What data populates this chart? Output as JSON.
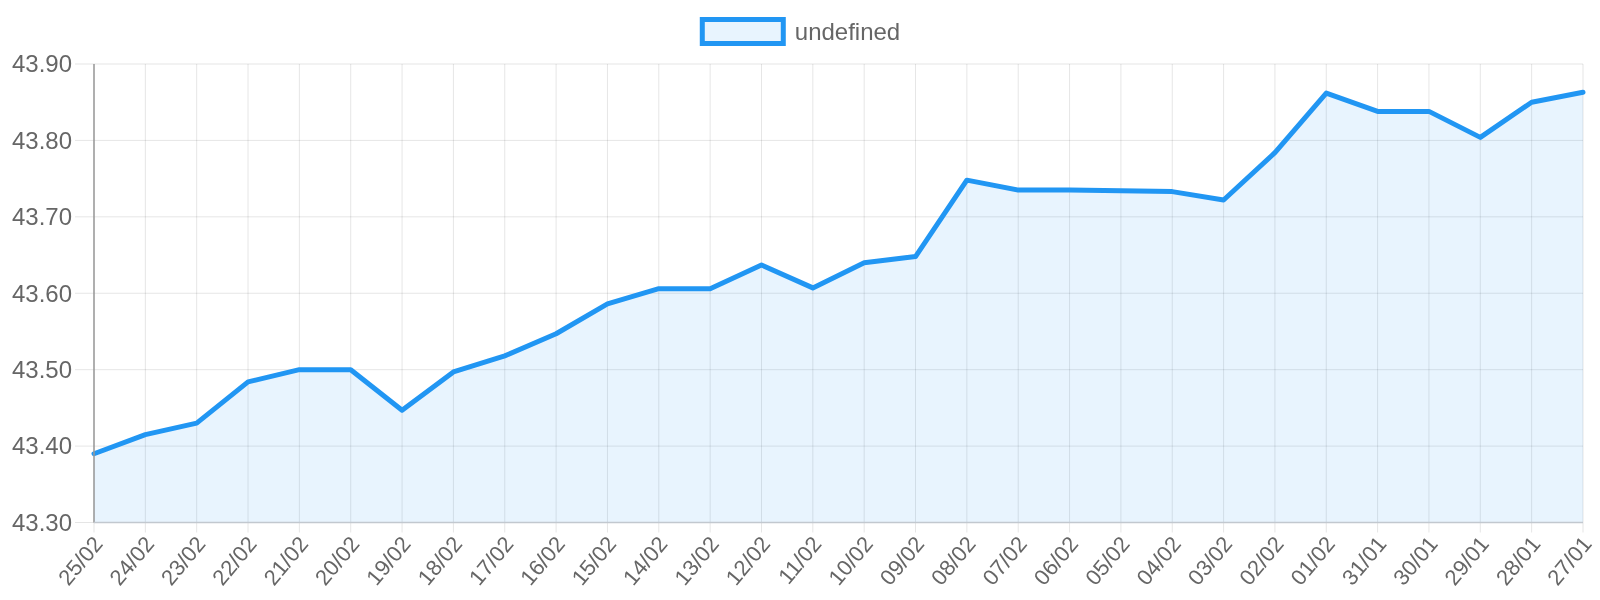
{
  "chart_data": {
    "type": "area",
    "categories": [
      "25/02",
      "24/02",
      "23/02",
      "22/02",
      "21/02",
      "20/02",
      "19/02",
      "18/02",
      "17/02",
      "16/02",
      "15/02",
      "14/02",
      "13/02",
      "12/02",
      "11/02",
      "10/02",
      "09/02",
      "08/02",
      "07/02",
      "06/02",
      "05/02",
      "04/02",
      "03/02",
      "02/02",
      "01/02",
      "31/01",
      "30/01",
      "29/01",
      "28/01",
      "27/01"
    ],
    "series": [
      {
        "name": "undefined",
        "color": "#2196f3",
        "values": [
          43.39,
          43.415,
          43.43,
          43.484,
          43.5,
          43.5,
          43.447,
          43.497,
          43.518,
          43.547,
          43.586,
          43.606,
          43.606,
          43.637,
          43.607,
          43.64,
          43.648,
          43.748,
          43.735,
          43.735,
          43.734,
          43.733,
          43.722,
          43.784,
          43.862,
          43.838,
          43.838,
          43.804,
          43.85,
          43.863
        ]
      }
    ],
    "ylim": [
      43.3,
      43.9
    ],
    "yticks": [
      {
        "value": 43.3,
        "label": "43.30"
      },
      {
        "value": 43.4,
        "label": "43.40"
      },
      {
        "value": 43.5,
        "label": "43.50"
      },
      {
        "value": 43.6,
        "label": "43.60"
      },
      {
        "value": 43.7,
        "label": "43.70"
      },
      {
        "value": 43.8,
        "label": "43.80"
      },
      {
        "value": 43.9,
        "label": "43.90"
      }
    ],
    "grid": true,
    "legend": "top"
  }
}
